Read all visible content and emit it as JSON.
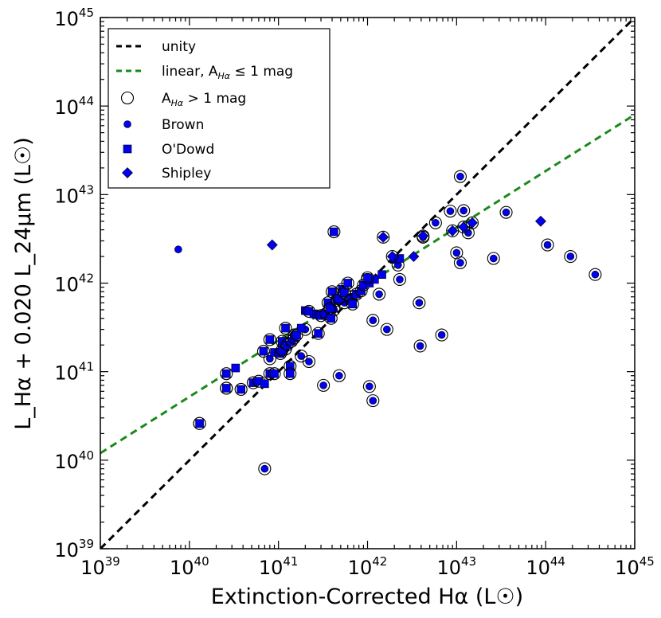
{
  "chart_data": {
    "type": "scatter",
    "x_scale": "log",
    "y_scale": "log",
    "xlim": [
      1e+39,
      1e+45
    ],
    "ylim": [
      1e+39,
      1e+45
    ],
    "xlabel": "Extinction-Corrected Hα (L☉)",
    "ylabel": "L_Hα + 0.020 L_24μm (L☉)",
    "tick_base": "10",
    "x_tick_exponents": [
      "39",
      "40",
      "41",
      "42",
      "43",
      "44",
      "45"
    ],
    "y_tick_exponents": [
      "39",
      "40",
      "41",
      "42",
      "43",
      "44",
      "45"
    ],
    "lines": [
      {
        "name": "unity",
        "color": "#000000",
        "style": "dashed",
        "x": [
          1e+39,
          1e+45
        ],
        "y": [
          1e+39,
          1e+45
        ]
      },
      {
        "name": "linear",
        "color": "#1a8a1a",
        "style": "dashed",
        "x": [
          1e+39,
          1e+45
        ],
        "y": [
          1.2e+40,
          8e+43
        ]
      }
    ],
    "legend": {
      "placement": "top-left",
      "entries": [
        {
          "kind": "line",
          "color": "#000000",
          "text": "unity"
        },
        {
          "kind": "line",
          "color": "#1a8a1a",
          "text_prefix": "linear, A",
          "text_sub": "Hα",
          "text_suffix": " ≤ 1 mag"
        },
        {
          "kind": "ring",
          "color": "#000000",
          "text_prefix": "A",
          "text_sub": "Hα",
          "text_suffix": " > 1 mag"
        },
        {
          "kind": "circle",
          "color": "#0000ee",
          "text": "Brown"
        },
        {
          "kind": "square",
          "color": "#0000ee",
          "text": "O'Dowd"
        },
        {
          "kind": "diamond",
          "color": "#0000ee",
          "text": "Shipley"
        }
      ]
    },
    "series": [
      {
        "name": "Brown",
        "marker": "circle",
        "color": "#0000ee",
        "points": [
          [
            7.5e+39,
            2.4e+42,
            0
          ],
          [
            7e+40,
            8e+39,
            1
          ],
          [
            1.3e+40,
            2.6e+40,
            1
          ],
          [
            2.6e+40,
            6.5e+40,
            1
          ],
          [
            3.2e+41,
            7e+40,
            1
          ],
          [
            4.8e+41,
            9e+40,
            1
          ],
          [
            1.05e+42,
            6.8e+40,
            1
          ],
          [
            1.15e+42,
            4.7e+40,
            1
          ],
          [
            1.65e+42,
            3e+41,
            1
          ],
          [
            3.9e+42,
            1.95e+41,
            1
          ],
          [
            6.8e+42,
            2.6e+41,
            1
          ],
          [
            2.2e+41,
            1.3e+41,
            1
          ],
          [
            1.15e+42,
            3.8e+41,
            1
          ],
          [
            1.35e+42,
            7.5e+41,
            1
          ],
          [
            2.3e+42,
            1.1e+42,
            1
          ],
          [
            3.8e+42,
            6e+41,
            1
          ],
          [
            1.1e+43,
            1.6e+43,
            1
          ],
          [
            1.35e+43,
            3.7e+42,
            1
          ],
          [
            1e+43,
            2.2e+42,
            1
          ],
          [
            1.1e+43,
            1.7e+42,
            1
          ],
          [
            2.6e+43,
            1.9e+42,
            1
          ],
          [
            3.6e+43,
            6.3e+42,
            1
          ],
          [
            1.05e+44,
            2.7e+42,
            1
          ],
          [
            1.9e+44,
            2e+42,
            1
          ],
          [
            3.6e+44,
            1.25e+42,
            1
          ],
          [
            4.2e+41,
            5e+41,
            1
          ],
          [
            5.5e+41,
            6e+41,
            1
          ],
          [
            1.8e+41,
            1.5e+41,
            1
          ],
          [
            8.5e+42,
            6.5e+42,
            1
          ],
          [
            5.8e+42,
            4.8e+42,
            1
          ],
          [
            4.2e+42,
            3.3e+42,
            1
          ],
          [
            2.2e+42,
            1.6e+42,
            1
          ],
          [
            1.2e+43,
            6.6e+42,
            1
          ],
          [
            6.5e+41,
            7e+41,
            1
          ],
          [
            1e+42,
            1.1e+42,
            1
          ],
          [
            2e+41,
            3e+41,
            1
          ],
          [
            1.2e+41,
            1.8e+41,
            1
          ],
          [
            8e+40,
            1.4e+41,
            1
          ],
          [
            3.5e+41,
            4.5e+41,
            1
          ],
          [
            1.5e+41,
            2.6e+41,
            1
          ]
        ]
      },
      {
        "name": "O'Dowd",
        "marker": "square",
        "color": "#0000ee",
        "points": [
          [
            1.3e+40,
            2.6e+40,
            1
          ],
          [
            2.6e+40,
            9.5e+40,
            1
          ],
          [
            2.6e+40,
            6.5e+40,
            1
          ],
          [
            3.3e+40,
            1.1e+41,
            0
          ],
          [
            3.8e+40,
            6.3e+40,
            1
          ],
          [
            5.2e+40,
            7.5e+40,
            1
          ],
          [
            6e+40,
            7.8e+40,
            1
          ],
          [
            7e+40,
            7.3e+40,
            0
          ],
          [
            6.8e+40,
            1.7e+41,
            1
          ],
          [
            8e+40,
            2.3e+41,
            1
          ],
          [
            8e+40,
            9.5e+40,
            1
          ],
          [
            9e+40,
            9.5e+40,
            1
          ],
          [
            9e+40,
            1.65e+41,
            0
          ],
          [
            1.05e+41,
            1.6e+41,
            1
          ],
          [
            1.1e+41,
            1.75e+41,
            1
          ],
          [
            1.1e+41,
            2.2e+41,
            1
          ],
          [
            1.2e+41,
            3.1e+41,
            1
          ],
          [
            1.25e+41,
            2e+41,
            1
          ],
          [
            1.35e+41,
            1.15e+41,
            1
          ],
          [
            1.35e+41,
            9.5e+40,
            1
          ],
          [
            1.4e+41,
            2.2e+41,
            1
          ],
          [
            1.5e+41,
            2.4e+41,
            1
          ],
          [
            1.6e+41,
            2.6e+41,
            1
          ],
          [
            1.8e+41,
            3.1e+41,
            0
          ],
          [
            2e+41,
            4.9e+41,
            0
          ],
          [
            2.2e+41,
            4.8e+41,
            1
          ],
          [
            2.5e+41,
            4.5e+41,
            0
          ],
          [
            2.7e+41,
            4.4e+41,
            0
          ],
          [
            2.8e+41,
            2.7e+41,
            1
          ],
          [
            3e+41,
            4.3e+41,
            1
          ],
          [
            3.4e+41,
            4.5e+41,
            1
          ],
          [
            3.6e+41,
            6e+41,
            1
          ],
          [
            3.8e+41,
            5.2e+41,
            1
          ],
          [
            3.9e+41,
            4e+41,
            1
          ],
          [
            4e+41,
            8e+41,
            1
          ],
          [
            4.2e+41,
            3.8e+42,
            1
          ],
          [
            4.5e+41,
            6.4e+41,
            1
          ],
          [
            4.8e+41,
            6.7e+41,
            1
          ],
          [
            5.2e+41,
            8.5e+41,
            1
          ],
          [
            5.5e+41,
            7.8e+41,
            1
          ],
          [
            6e+41,
            1e+42,
            1
          ],
          [
            6.5e+41,
            6.5e+41,
            1
          ],
          [
            6.8e+41,
            5.8e+41,
            1
          ],
          [
            7.5e+41,
            7.5e+41,
            1
          ],
          [
            8.5e+41,
            8.2e+41,
            1
          ],
          [
            9e+41,
            9.5e+41,
            1
          ],
          [
            1.05e+42,
            1e+42,
            0
          ],
          [
            1.2e+42,
            1.1e+42,
            0
          ],
          [
            1.45e+42,
            1.25e+42,
            0
          ],
          [
            2e+42,
            1.85e+42,
            0
          ],
          [
            2.3e+42,
            1.9e+42,
            0
          ],
          [
            1e+42,
            1.15e+42,
            1
          ]
        ]
      },
      {
        "name": "Shipley",
        "marker": "diamond",
        "color": "#0000ee",
        "points": [
          [
            8.5e+40,
            2.7e+42,
            0
          ],
          [
            1.5e+42,
            3.3e+42,
            1
          ],
          [
            1.9e+42,
            2e+42,
            1
          ],
          [
            3.3e+42,
            2e+42,
            0
          ],
          [
            4.2e+42,
            3.4e+42,
            1
          ],
          [
            9e+42,
            3.9e+42,
            1
          ],
          [
            1.2e+43,
            4.3e+42,
            1
          ],
          [
            1.5e+43,
            4.8e+42,
            1
          ],
          [
            8.8e+43,
            5e+42,
            0
          ]
        ]
      }
    ]
  }
}
